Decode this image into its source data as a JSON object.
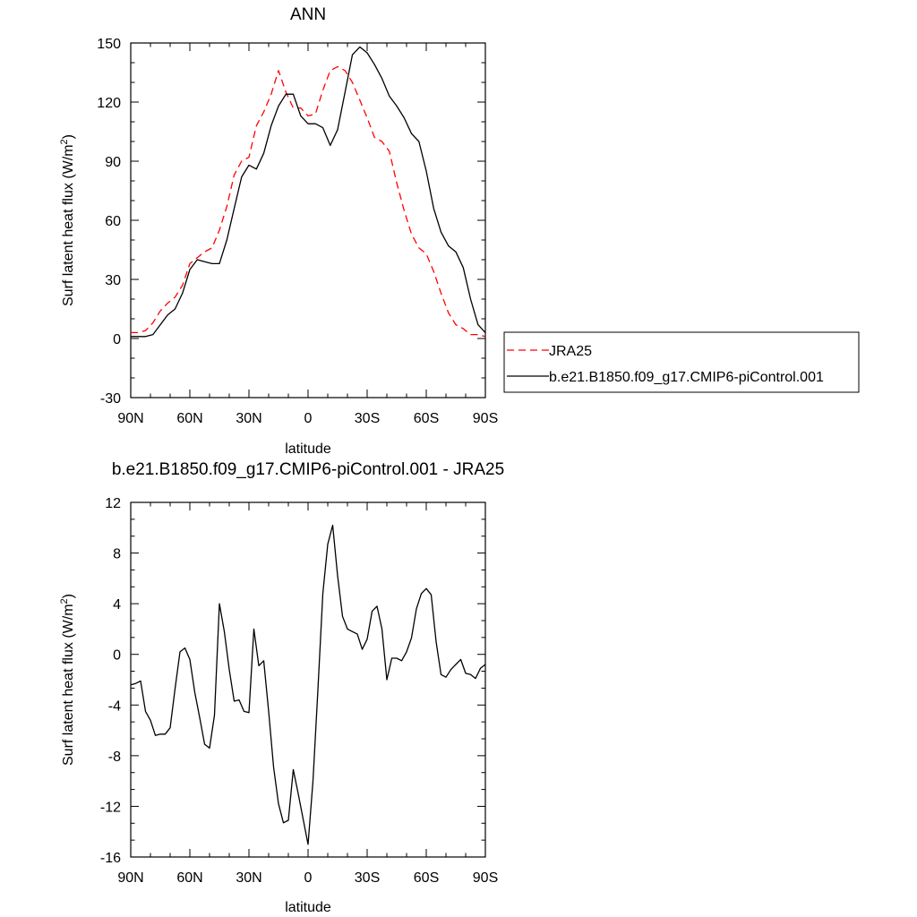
{
  "chart_data": [
    {
      "type": "line",
      "title": "ANN",
      "xlabel": "latitude",
      "ylabel": "Surf latent heat flux (W/m",
      "ylabel_sup": "2",
      "ylabel_close": ")",
      "xlim": [
        90,
        -90
      ],
      "ylim": [
        -30,
        150
      ],
      "x_ticks": [
        {
          "value": 90,
          "label": "90N"
        },
        {
          "value": 60,
          "label": "60N"
        },
        {
          "value": 30,
          "label": "30N"
        },
        {
          "value": 0,
          "label": "0"
        },
        {
          "value": -30,
          "label": "30S"
        },
        {
          "value": -60,
          "label": "60S"
        },
        {
          "value": -90,
          "label": "90S"
        }
      ],
      "y_ticks": [
        {
          "value": -30,
          "label": "-30"
        },
        {
          "value": 0,
          "label": "0"
        },
        {
          "value": 30,
          "label": "30"
        },
        {
          "value": 60,
          "label": "60"
        },
        {
          "value": 90,
          "label": "90"
        },
        {
          "value": 120,
          "label": "120"
        },
        {
          "value": 150,
          "label": "150"
        }
      ],
      "grid": false,
      "legend_position": "right",
      "series": [
        {
          "name": "JRA25",
          "color": "#ff0000",
          "dash": "dashed",
          "x": [
            90,
            86.25,
            82.5,
            78.75,
            75,
            71.25,
            67.5,
            63.75,
            60,
            56.25,
            52.5,
            48.75,
            45,
            41.25,
            37.5,
            33.75,
            30,
            26.25,
            22.5,
            18.75,
            15,
            11.25,
            7.5,
            3.75,
            0,
            -3.75,
            -7.5,
            -11.25,
            -15,
            -18.75,
            -22.5,
            -26.25,
            -30,
            -33.75,
            -37.5,
            -41.25,
            -45,
            -48.75,
            -52.5,
            -56.25,
            -60,
            -63.75,
            -67.5,
            -71.25,
            -75,
            -78.75,
            -82.5,
            -86.25,
            -90
          ],
          "y": [
            3,
            3,
            4,
            8,
            14,
            18,
            21,
            27,
            38,
            41,
            44,
            46,
            55,
            67,
            83,
            90,
            92,
            108,
            115,
            124,
            136,
            125,
            117,
            117,
            113,
            114,
            126,
            136,
            138,
            136,
            130,
            121,
            112,
            102,
            100,
            95,
            79,
            65,
            53,
            46,
            43,
            34,
            23,
            13,
            7,
            5,
            2,
            2,
            1
          ]
        },
        {
          "name": "b.e21.B1850.f09_g17.CMIP6-piControl.001",
          "color": "#000000",
          "dash": "solid",
          "x": [
            90,
            86.25,
            82.5,
            78.75,
            75,
            71.25,
            67.5,
            63.75,
            60,
            56.25,
            52.5,
            48.75,
            45,
            41.25,
            37.5,
            33.75,
            30,
            26.25,
            22.5,
            18.75,
            15,
            11.25,
            7.5,
            3.75,
            0,
            -3.75,
            -7.5,
            -11.25,
            -15,
            -18.75,
            -22.5,
            -26.25,
            -30,
            -33.75,
            -37.5,
            -41.25,
            -45,
            -48.75,
            -52.5,
            -56.25,
            -60,
            -63.75,
            -67.5,
            -71.25,
            -75,
            -78.75,
            -82.5,
            -86.25,
            -90
          ],
          "y": [
            1,
            1,
            1,
            2,
            7,
            12,
            15,
            23,
            35,
            40,
            39,
            38,
            38,
            50,
            66,
            82,
            88,
            86,
            94,
            108,
            118,
            124,
            124,
            113,
            109,
            109,
            107,
            98,
            106,
            125,
            144,
            148,
            145,
            139,
            132,
            123,
            118,
            112,
            104,
            100,
            85,
            66,
            54,
            47,
            44,
            36,
            20,
            7,
            3
          ]
        }
      ]
    },
    {
      "type": "line",
      "title": "b.e21.B1850.f09_g17.CMIP6-piControl.001 - JRA25",
      "xlabel": "latitude",
      "ylabel": "Surf latent heat flux (W/m",
      "ylabel_sup": "2",
      "ylabel_close": ")",
      "xlim": [
        90,
        -90
      ],
      "ylim": [
        -16,
        12
      ],
      "x_ticks": [
        {
          "value": 90,
          "label": "90N"
        },
        {
          "value": 60,
          "label": "60N"
        },
        {
          "value": 30,
          "label": "30N"
        },
        {
          "value": 0,
          "label": "0"
        },
        {
          "value": -30,
          "label": "30S"
        },
        {
          "value": -60,
          "label": "60S"
        },
        {
          "value": -90,
          "label": "90S"
        }
      ],
      "y_ticks": [
        {
          "value": -16,
          "label": "-16"
        },
        {
          "value": -12,
          "label": "-12"
        },
        {
          "value": -8,
          "label": "-8"
        },
        {
          "value": -4,
          "label": "-4"
        },
        {
          "value": 0,
          "label": "0"
        },
        {
          "value": 4,
          "label": "4"
        },
        {
          "value": 8,
          "label": "8"
        },
        {
          "value": 12,
          "label": "12"
        }
      ],
      "grid": false,
      "series": [
        {
          "color": "#000000",
          "dash": "solid",
          "x": [
            90,
            87.5,
            85,
            82.5,
            80,
            77.5,
            75,
            72.5,
            70,
            67.5,
            65,
            62.5,
            60,
            57.5,
            55,
            52.5,
            50,
            47.5,
            45,
            42.5,
            40,
            37.5,
            35,
            32.5,
            30,
            27.5,
            25,
            22.5,
            20,
            17.5,
            15,
            12.5,
            10,
            7.5,
            5,
            2.5,
            0,
            -2.5,
            -5,
            -7.5,
            -10,
            -12.5,
            -15,
            -17.5,
            -20,
            -22.5,
            -25,
            -27.5,
            -30,
            -32.5,
            -35,
            -37.5,
            -40,
            -42.5,
            -45,
            -47.5,
            -50,
            -52.5,
            -55,
            -57.5,
            -60,
            -62.5,
            -65,
            -67.5,
            -70,
            -72.5,
            -75,
            -77.5,
            -80,
            -82.5,
            -85,
            -87.5,
            -90
          ],
          "y": [
            -2.4,
            -2.3,
            -2.1,
            -4.5,
            -5.2,
            -6.4,
            -6.3,
            -6.3,
            -5.8,
            -2.7,
            0.2,
            0.5,
            -0.4,
            -3.0,
            -5.0,
            -7.1,
            -7.4,
            -4.8,
            4.0,
            1.8,
            -1.2,
            -3.7,
            -3.6,
            -4.5,
            -4.6,
            2.0,
            -0.9,
            -0.5,
            -4.5,
            -8.9,
            -11.8,
            -13.3,
            -13.1,
            -9.1,
            -11.0,
            -13.0,
            -15.0,
            -10.0,
            -2.8,
            4.8,
            8.7,
            10.2,
            6.2,
            3.0,
            2.0,
            1.8,
            1.6,
            0.4,
            1.2,
            3.4,
            3.8,
            2.0,
            -2.0,
            -0.3,
            -0.3,
            -0.5,
            0.2,
            1.3,
            3.6,
            4.8,
            5.2,
            4.7,
            1.0,
            -1.6,
            -1.8,
            -1.2,
            -0.8,
            -0.4,
            -1.5,
            -1.6,
            -1.9,
            -1.1,
            -0.8
          ]
        }
      ]
    }
  ]
}
